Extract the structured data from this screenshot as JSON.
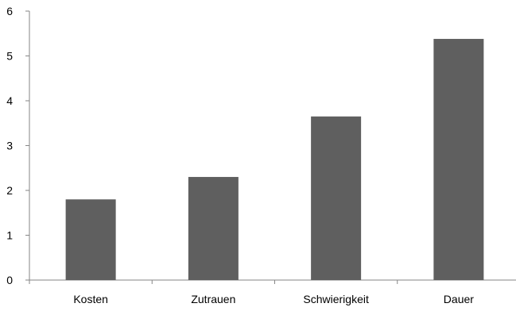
{
  "chart_data": {
    "type": "bar",
    "title": "",
    "xlabel": "",
    "ylabel": "",
    "categories": [
      "Kosten",
      "Zutrauen",
      "Schwierigkeit",
      "Dauer"
    ],
    "values": [
      1.8,
      2.3,
      3.65,
      5.38
    ],
    "ylim": [
      0,
      6
    ],
    "yticks": [
      "0",
      "1",
      "2",
      "3",
      "4",
      "5",
      "6"
    ],
    "grid": false,
    "legend": "none",
    "bar_color": "#5f5f5f",
    "axis_color": "#868686"
  }
}
